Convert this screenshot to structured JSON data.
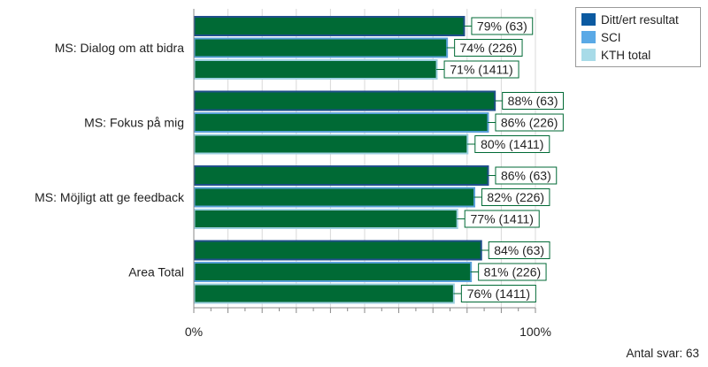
{
  "chart_data": {
    "type": "bar",
    "orientation": "horizontal",
    "categories": [
      "MS: Dialog om att bidra",
      "MS: Fokus på mig",
      "MS: Möjligt att ge feedback",
      "Area Total"
    ],
    "series": [
      {
        "name": "Ditt/ert resultat",
        "values": [
          79,
          88,
          86,
          84
        ],
        "labels": [
          "79% (63)",
          "88% (63)",
          "86% (63)",
          "84% (63)"
        ],
        "legend_color": "#0b5aa1",
        "bar_color": "#006a35",
        "border_color": "#1f4f8a"
      },
      {
        "name": "SCI",
        "values": [
          74,
          86,
          82,
          81
        ],
        "labels": [
          "74% (226)",
          "86% (226)",
          "82% (226)",
          "81% (226)"
        ],
        "legend_color": "#5aa9e6",
        "bar_color": "#006a35",
        "border_color": "#5aa0d8"
      },
      {
        "name": "KTH total",
        "values": [
          71,
          80,
          77,
          76
        ],
        "labels": [
          "71% (1411)",
          "80% (1411)",
          "77% (1411)",
          "76% (1411)"
        ],
        "legend_color": "#a8dbe8",
        "bar_color": "#006a35",
        "border_color": "#9ccfe0"
      }
    ],
    "xlim": [
      0,
      100
    ],
    "x_tick_labels": [
      "0%",
      "100%"
    ],
    "grid": true,
    "legend_position": "top-right"
  },
  "footer": {
    "note": "Antal svar: 63"
  }
}
